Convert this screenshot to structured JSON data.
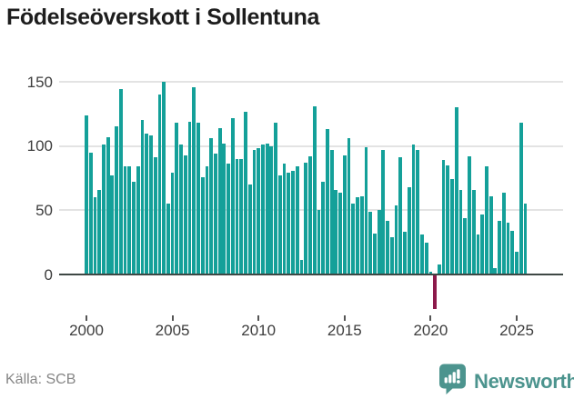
{
  "page": {
    "title": "Födelseöverskott i Sollentuna",
    "source": "Källa: SCB",
    "brand": "Newsworthy"
  },
  "chart_data": {
    "type": "bar",
    "title": "Födelseöverskott i Sollentuna",
    "frequency": "quarterly",
    "x_start": "2000-Q1",
    "x_end": "2025-Q3",
    "values": [
      124,
      95,
      60,
      66,
      101,
      107,
      77,
      115,
      144,
      84,
      84,
      72,
      84,
      120,
      110,
      108,
      91,
      140,
      150,
      55,
      79,
      118,
      101,
      93,
      119,
      146,
      118,
      76,
      84,
      106,
      94,
      114,
      102,
      86,
      122,
      90,
      90,
      127,
      70,
      97,
      98,
      101,
      102,
      100,
      118,
      77,
      86,
      79,
      81,
      84,
      11,
      87,
      92,
      131,
      50,
      72,
      113,
      97,
      66,
      64,
      93,
      106,
      55,
      60,
      61,
      99,
      49,
      32,
      50,
      97,
      42,
      29,
      54,
      91,
      33,
      68,
      101,
      97,
      31,
      25,
      2,
      -27,
      8,
      89,
      85,
      74,
      130,
      66,
      44,
      92,
      66,
      31,
      47,
      84,
      61,
      5,
      42,
      64,
      40,
      34,
      18,
      118,
      55
    ],
    "x_tick_labels": [
      "2000",
      "2005",
      "2010",
      "2015",
      "2020",
      "2025"
    ],
    "y_ticks": [
      0,
      50,
      100,
      150
    ],
    "ylim": [
      -40,
      157
    ],
    "grid": "horizontal",
    "legend": "none",
    "colors": {
      "positive_bar": "#14a099",
      "negative_bar": "#8c1a4b",
      "axis": "#3e4844",
      "gridline": "#e3e3e3",
      "tick_label": "#3d3d3d",
      "brand_teal": "#4c948e"
    }
  }
}
